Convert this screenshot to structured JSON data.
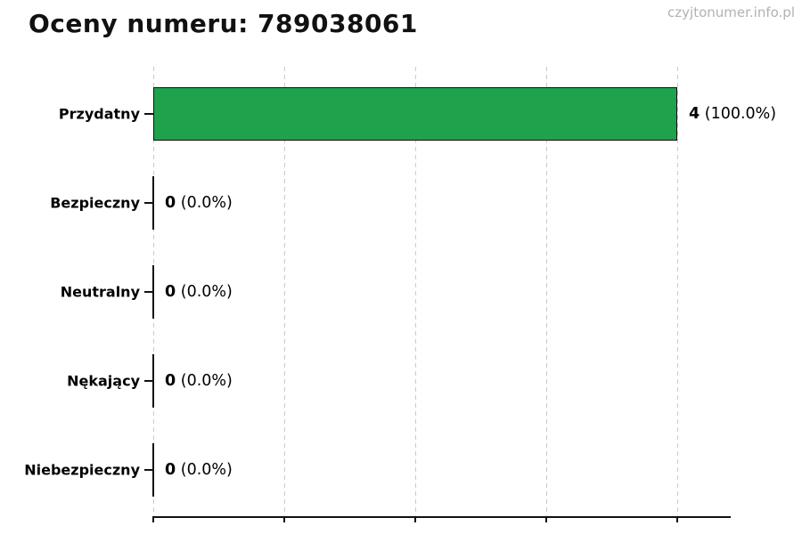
{
  "page": {
    "title": "Oceny numeru: 789038061",
    "watermark": "czyjtonumer.info.pl"
  },
  "chart_data": {
    "type": "bar",
    "orientation": "horizontal",
    "title": "Oceny numeru: 789038061",
    "categories": [
      "Przydatny",
      "Bezpieczny",
      "Neutralny",
      "Nękający",
      "Niebezpieczny"
    ],
    "values": [
      4,
      0,
      0,
      0,
      0
    ],
    "value_strings": [
      "4",
      "0",
      "0",
      "0",
      "0"
    ],
    "percent_strings": [
      "(100.0%)",
      "(0.0%)",
      "(0.0%)",
      "(0.0%)",
      "(0.0%)"
    ],
    "bar_labels": [
      "4 (100.0%)",
      "0 (0.0%)",
      "0 (0.0%)",
      "0 (0.0%)",
      "0 (0.0%)"
    ],
    "xlabel": "",
    "ylabel": "",
    "xlim": [
      0,
      4.4
    ],
    "x_gridlines": [
      0,
      1,
      2,
      3,
      4
    ],
    "grid": true,
    "legend": false,
    "bar_color": "#1fa24c",
    "bar_border_color": "#111111",
    "gridline_color": "#cbcbcb",
    "axis_color": "#111111",
    "watermark_color": "#b2b2b2"
  }
}
